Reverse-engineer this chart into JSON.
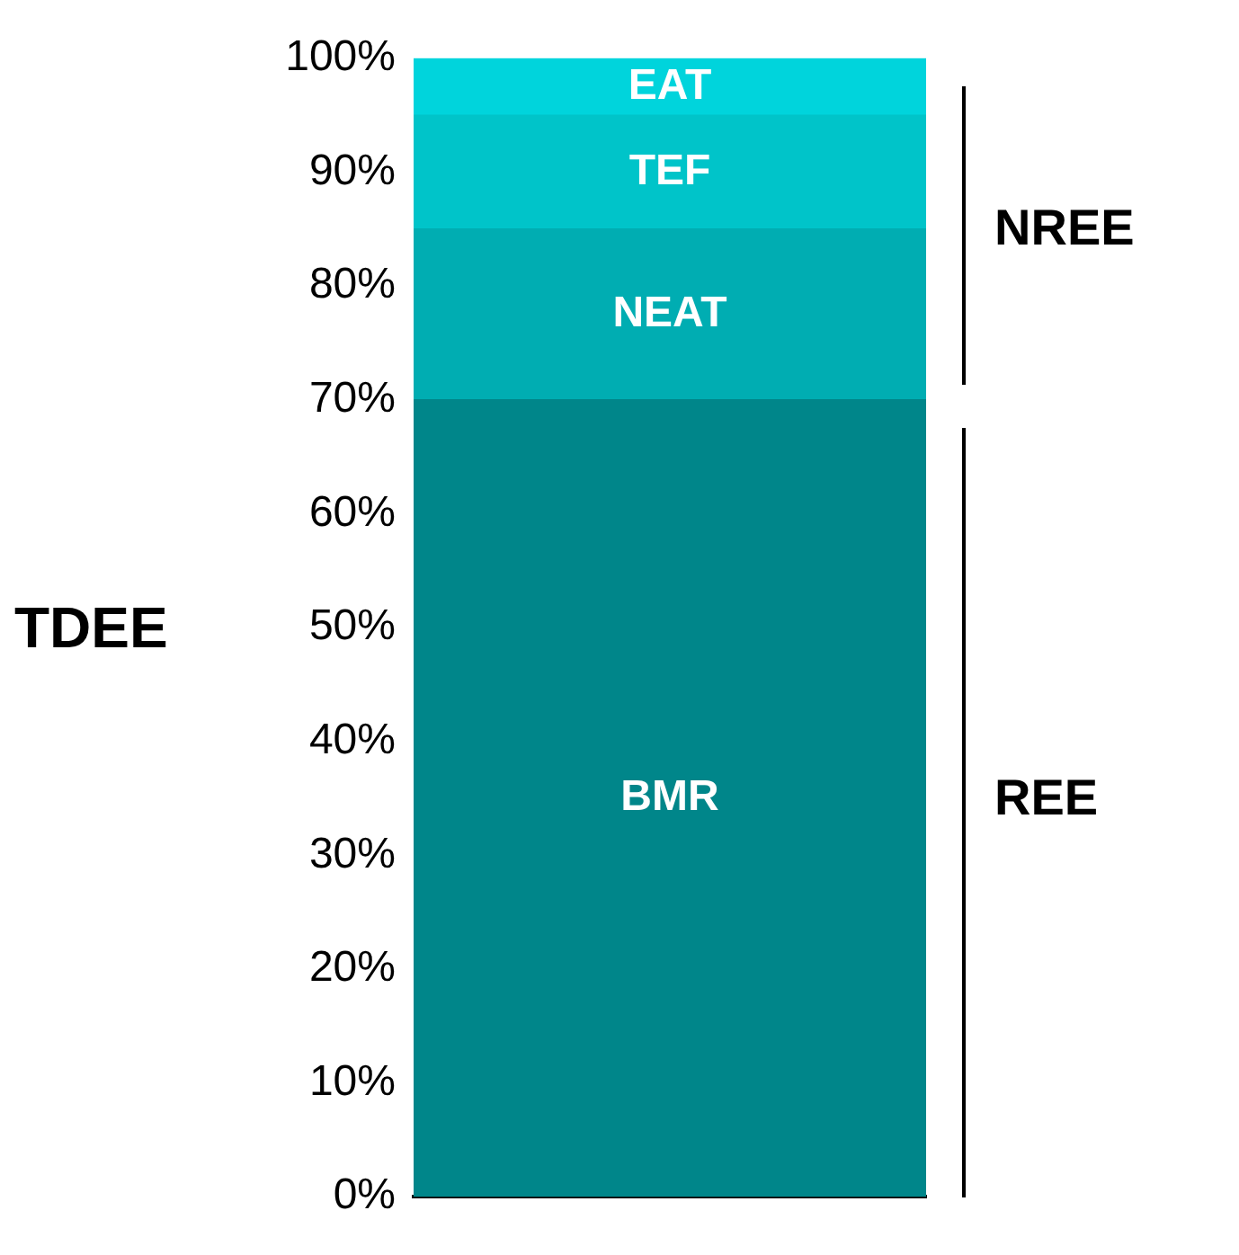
{
  "chart_data": {
    "type": "bar",
    "stacked": true,
    "ylabel": "TDEE",
    "categories": [
      null
    ],
    "series": [
      {
        "name": "BMR",
        "color": "#00868a",
        "values": [
          70
        ]
      },
      {
        "name": "NEAT",
        "color": "#00adb2",
        "values": [
          15
        ]
      },
      {
        "name": "TEF",
        "color": "#00c4c9",
        "values": [
          10
        ]
      },
      {
        "name": "EAT",
        "color": "#00d4dc",
        "values": [
          5
        ]
      }
    ],
    "ylim": [
      0,
      100
    ],
    "yticks": [
      {
        "value": 0,
        "label": "0%"
      },
      {
        "value": 10,
        "label": "10%"
      },
      {
        "value": 20,
        "label": "20%"
      },
      {
        "value": 30,
        "label": "30%"
      },
      {
        "value": 40,
        "label": "40%"
      },
      {
        "value": 50,
        "label": "50%"
      },
      {
        "value": 60,
        "label": "60%"
      },
      {
        "value": 70,
        "label": "70%"
      },
      {
        "value": 80,
        "label": "80%"
      },
      {
        "value": 90,
        "label": "90%"
      },
      {
        "value": 100,
        "label": "100%"
      }
    ],
    "annotations": [
      "REE",
      "NREE"
    ],
    "grid": false,
    "legend": false
  }
}
